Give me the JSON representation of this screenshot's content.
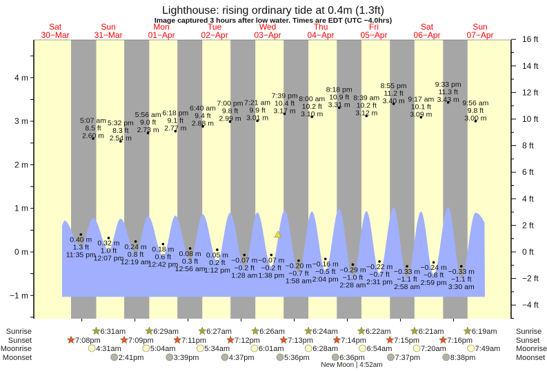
{
  "chart_data": {
    "type": "area",
    "title": "Lighthouse: rising  ordinary tide at 0.4m (1.3ft)",
    "subtitle": "Image captured 3 hours after low water. Times are EDT (UTC −4.0hrs)",
    "days": [
      {
        "dow": "Sat",
        "date": "30−Mar"
      },
      {
        "dow": "Sun",
        "date": "31−Mar"
      },
      {
        "dow": "Mon",
        "date": "01−Apr"
      },
      {
        "dow": "Tue",
        "date": "02−Apr"
      },
      {
        "dow": "Wed",
        "date": "03−Apr"
      },
      {
        "dow": "Thu",
        "date": "04−Apr"
      },
      {
        "dow": "Fri",
        "date": "05−Apr"
      },
      {
        "dow": "Sat",
        "date": "06−Apr"
      },
      {
        "dow": "Sun",
        "date": "07−Apr"
      }
    ],
    "ylim_m": [
      -1.5,
      4.9
    ],
    "left_axis_ticks": [
      "4 m",
      "3 m",
      "2 m",
      "1 m",
      "0 m",
      "−1 m"
    ],
    "left_axis_values": [
      4,
      3,
      2,
      1,
      0,
      -1
    ],
    "right_axis_ticks": [
      "16 ft",
      "14 ft",
      "12 ft",
      "10 ft",
      "8 ft",
      "6 ft",
      "4 ft",
      "2 ft",
      "0 ft",
      "−2 ft",
      "−4 ft"
    ],
    "right_axis_values": [
      16,
      14,
      12,
      10,
      8,
      6,
      4,
      2,
      0,
      -2,
      -4
    ],
    "tides": [
      {
        "type": "low",
        "day": 0,
        "time": "11:35 pm",
        "m": "0.40 m",
        "ft": "1.3 ft",
        "v": 0.4
      },
      {
        "type": "high",
        "day": 1,
        "time": "5:07 am",
        "m": "2.60 m",
        "ft": "8.5 ft",
        "v": 2.6
      },
      {
        "type": "low",
        "day": 1,
        "time": "12:07 pm",
        "m": "0.32 m",
        "ft": "1.0 ft",
        "v": 0.32
      },
      {
        "type": "high",
        "day": 1,
        "time": "5:32 pm",
        "m": "2.54 m",
        "ft": "8.3 ft",
        "v": 2.54
      },
      {
        "type": "low",
        "day": 2,
        "time": "12:19 am",
        "m": "0.24 m",
        "ft": "0.8 ft",
        "v": 0.24
      },
      {
        "type": "high",
        "day": 2,
        "time": "5:56 am",
        "m": "2.73 m",
        "ft": "9.0 ft",
        "v": 2.73
      },
      {
        "type": "low",
        "day": 2,
        "time": "12:42 pm",
        "m": "0.18 m",
        "ft": "0.6 ft",
        "v": 0.18
      },
      {
        "type": "high",
        "day": 2,
        "time": "6:18 pm",
        "m": "2.77 m",
        "ft": "9.1 ft",
        "v": 2.77
      },
      {
        "type": "low",
        "day": 3,
        "time": "12:56 am",
        "m": "0.08 m",
        "ft": "0.3 ft",
        "v": 0.08
      },
      {
        "type": "high",
        "day": 3,
        "time": "6:40 am",
        "m": "2.88 m",
        "ft": "9.4 ft",
        "v": 2.88
      },
      {
        "type": "low",
        "day": 3,
        "time": "1:12 pm",
        "m": "0.05 m",
        "ft": "0.2 ft",
        "v": 0.05
      },
      {
        "type": "high",
        "day": 3,
        "time": "7:00 pm",
        "m": "2.99 m",
        "ft": "9.8 ft",
        "v": 2.99
      },
      {
        "type": "low",
        "day": 4,
        "time": "1:28 am",
        "m": "−0.07 m",
        "ft": "−0.2 ft",
        "v": -0.07
      },
      {
        "type": "high",
        "day": 4,
        "time": "7:21 am",
        "m": "3.01 m",
        "ft": "9.9 ft",
        "v": 3.01
      },
      {
        "type": "low",
        "day": 4,
        "time": "1:38 pm",
        "m": "−0.07 m",
        "ft": "−0.2 ft",
        "v": -0.07
      },
      {
        "type": "high",
        "day": 4,
        "time": "7:39 pm",
        "m": "3.17 m",
        "ft": "10.4 ft",
        "v": 3.17
      },
      {
        "type": "low",
        "day": 5,
        "time": "1:58 am",
        "m": "−0.20 m",
        "ft": "−0.7 ft",
        "v": -0.2
      },
      {
        "type": "high",
        "day": 5,
        "time": "8:00 am",
        "m": "3.10 m",
        "ft": "10.2 ft",
        "v": 3.1
      },
      {
        "type": "low",
        "day": 5,
        "time": "2:04 pm",
        "m": "−0.16 m",
        "ft": "−0.5 ft",
        "v": -0.16
      },
      {
        "type": "high",
        "day": 5,
        "time": "8:18 pm",
        "m": "3.31 m",
        "ft": "10.9 ft",
        "v": 3.31
      },
      {
        "type": "low",
        "day": 6,
        "time": "2:28 am",
        "m": "−0.29 m",
        "ft": "−1.0 ft",
        "v": -0.29
      },
      {
        "type": "high",
        "day": 6,
        "time": "8:39 am",
        "m": "3.12 m",
        "ft": "10.2 ft",
        "v": 3.12
      },
      {
        "type": "low",
        "day": 6,
        "time": "2:31 pm",
        "m": "−0.22 m",
        "ft": "−0.7 ft",
        "v": -0.22
      },
      {
        "type": "high",
        "day": 6,
        "time": "8:55 pm",
        "m": "3.40 m",
        "ft": "11.2 ft",
        "v": 3.4
      },
      {
        "type": "low",
        "day": 7,
        "time": "2:58 am",
        "m": "−0.33 m",
        "ft": "−1.1 ft",
        "v": -0.33
      },
      {
        "type": "high",
        "day": 7,
        "time": "9:17 am",
        "m": "3.09 m",
        "ft": "10.1 ft",
        "v": 3.09
      },
      {
        "type": "low",
        "day": 7,
        "time": "2:59 pm",
        "m": "−0.24 m",
        "ft": "−0.8 ft",
        "v": -0.24
      },
      {
        "type": "high",
        "day": 7,
        "time": "9:33 pm",
        "m": "3.43 m",
        "ft": "11.3 ft",
        "v": 3.43
      },
      {
        "type": "low",
        "day": 8,
        "time": "3:30 am",
        "m": "−0.33 m",
        "ft": "−1.1 ft",
        "v": -0.33
      },
      {
        "type": "high",
        "day": 8,
        "time": "9:56 am",
        "m": "3.00 m",
        "ft": "9.8 ft",
        "v": 3.0
      }
    ],
    "current": {
      "day": 4,
      "time": "4:38 pm",
      "v": 0.4
    },
    "rows": {
      "labels": {
        "sunrise": "Sunrise",
        "sunset": "Sunset",
        "moonrise": "Moonrise",
        "moonset": "Moonset"
      },
      "sunrise": [
        {
          "day": 1,
          "t": "6:31am"
        },
        {
          "day": 2,
          "t": "6:29am"
        },
        {
          "day": 3,
          "t": "6:27am"
        },
        {
          "day": 4,
          "t": "6:26am"
        },
        {
          "day": 5,
          "t": "6:24am"
        },
        {
          "day": 6,
          "t": "6:22am"
        },
        {
          "day": 7,
          "t": "6:21am"
        },
        {
          "day": 8,
          "t": "6:19am"
        }
      ],
      "sunset": [
        {
          "day": 0,
          "t": "7:08pm"
        },
        {
          "day": 1,
          "t": "7:09pm"
        },
        {
          "day": 2,
          "t": "7:11pm"
        },
        {
          "day": 3,
          "t": "7:12pm"
        },
        {
          "day": 4,
          "t": "7:13pm"
        },
        {
          "day": 5,
          "t": "7:14pm"
        },
        {
          "day": 6,
          "t": "7:15pm"
        },
        {
          "day": 7,
          "t": "7:16pm"
        }
      ],
      "moonrise": [
        {
          "day": 1,
          "t": "4:31am"
        },
        {
          "day": 2,
          "t": "5:04am"
        },
        {
          "day": 3,
          "t": "5:34am"
        },
        {
          "day": 4,
          "t": "6:01am"
        },
        {
          "day": 5,
          "t": "6:28am"
        },
        {
          "day": 6,
          "t": "6:54am"
        },
        {
          "day": 7,
          "t": "7:20am"
        },
        {
          "day": 8,
          "t": "7:49am"
        }
      ],
      "moonset": [
        {
          "day": 1,
          "t": "2:41pm"
        },
        {
          "day": 2,
          "t": "3:39pm"
        },
        {
          "day": 3,
          "t": "4:37pm"
        },
        {
          "day": 4,
          "t": "5:36pm"
        },
        {
          "day": 5,
          "t": "6:36pm"
        },
        {
          "day": 6,
          "t": "7:37pm"
        },
        {
          "day": 7,
          "t": "8:38pm"
        }
      ]
    },
    "moon_phase": "New Moon | 4:52am",
    "colors": {
      "day": "#ffffcc",
      "night": "#a6a6a6",
      "water": "#a0b0ff",
      "sunrise": "#a8a830",
      "sunset": "#e05a20",
      "moonrise": "#ffffc0",
      "moonset": "#b4b4a0",
      "days": "#ff0000",
      "marker": "#e8e040"
    }
  }
}
